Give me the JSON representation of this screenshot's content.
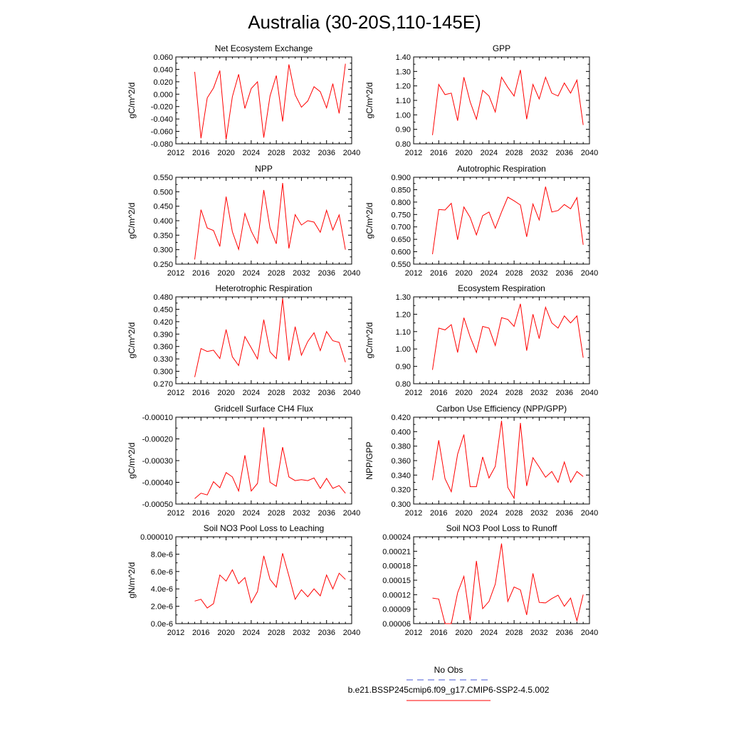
{
  "figure": {
    "title": "Australia (30-20S,110-145E)",
    "legend": {
      "obs_label": "No Obs",
      "obs_color": "#4a5bd6",
      "model_label": "b.e21.BSSP245cmip6.f09_g17.CMIP6-SSP2-4.5.002",
      "model_color": "#ff0000"
    }
  },
  "chart_data": [
    {
      "type": "line",
      "title": "Net Ecosystem Exchange",
      "ylabel": "gC/m^2/d",
      "xlim": [
        2012,
        2040
      ],
      "xticks": [
        "2012",
        "2016",
        "2020",
        "2024",
        "2028",
        "2032",
        "2036",
        "2040"
      ],
      "ylim": [
        -0.08,
        0.06
      ],
      "yticks": [
        "-0.080",
        "-0.060",
        "-0.040",
        "-0.020",
        "0.000",
        "0.020",
        "0.040",
        "0.060"
      ],
      "series": [
        {
          "color": "#ff0000",
          "x": [
            2015,
            2016,
            2017,
            2018,
            2019,
            2020,
            2021,
            2022,
            2023,
            2024,
            2025,
            2026,
            2027,
            2028,
            2029,
            2030,
            2031,
            2032,
            2033,
            2034,
            2035,
            2036,
            2037,
            2038,
            2039
          ],
          "values": [
            0.036,
            -0.071,
            -0.006,
            0.01,
            0.038,
            -0.073,
            -0.004,
            0.032,
            -0.023,
            0.009,
            0.02,
            -0.07,
            -0.003,
            0.03,
            -0.044,
            0.048,
            -0.001,
            -0.021,
            -0.011,
            0.012,
            0.004,
            -0.022,
            0.017,
            -0.031,
            0.049
          ]
        }
      ]
    },
    {
      "type": "line",
      "title": "GPP",
      "ylabel": "gC/m^2/d",
      "xlim": [
        2012,
        2040
      ],
      "xticks": [
        "2012",
        "2016",
        "2020",
        "2024",
        "2028",
        "2032",
        "2036",
        "2040"
      ],
      "ylim": [
        0.8,
        1.4
      ],
      "yticks": [
        "0.80",
        "0.90",
        "1.00",
        "1.10",
        "1.20",
        "1.30",
        "1.40"
      ],
      "series": [
        {
          "color": "#ff0000",
          "x": [
            2015,
            2016,
            2017,
            2018,
            2019,
            2020,
            2021,
            2022,
            2023,
            2024,
            2025,
            2026,
            2027,
            2028,
            2029,
            2030,
            2031,
            2032,
            2033,
            2034,
            2035,
            2036,
            2037,
            2038,
            2039
          ],
          "values": [
            0.86,
            1.21,
            1.14,
            1.15,
            0.96,
            1.26,
            1.09,
            0.97,
            1.17,
            1.13,
            1.02,
            1.26,
            1.19,
            1.13,
            1.31,
            0.97,
            1.21,
            1.11,
            1.26,
            1.15,
            1.13,
            1.22,
            1.15,
            1.24,
            0.93
          ]
        }
      ]
    },
    {
      "type": "line",
      "title": "NPP",
      "ylabel": "gC/m^2/d",
      "xlim": [
        2012,
        2040
      ],
      "xticks": [
        "2012",
        "2016",
        "2020",
        "2024",
        "2028",
        "2032",
        "2036",
        "2040"
      ],
      "ylim": [
        0.25,
        0.55
      ],
      "yticks": [
        "0.250",
        "0.300",
        "0.350",
        "0.400",
        "0.450",
        "0.500",
        "0.550"
      ],
      "series": [
        {
          "color": "#ff0000",
          "x": [
            2015,
            2016,
            2017,
            2018,
            2019,
            2020,
            2021,
            2022,
            2023,
            2024,
            2025,
            2026,
            2027,
            2028,
            2029,
            2030,
            2031,
            2032,
            2033,
            2034,
            2035,
            2036,
            2037,
            2038,
            2039
          ],
          "values": [
            0.266,
            0.438,
            0.375,
            0.366,
            0.311,
            0.483,
            0.362,
            0.301,
            0.425,
            0.364,
            0.322,
            0.506,
            0.375,
            0.32,
            0.53,
            0.304,
            0.421,
            0.385,
            0.4,
            0.395,
            0.36,
            0.436,
            0.368,
            0.42,
            0.3
          ]
        }
      ]
    },
    {
      "type": "line",
      "title": "Autotrophic Respiration",
      "ylabel": "gC/m^2/d",
      "xlim": [
        2012,
        2040
      ],
      "xticks": [
        "2012",
        "2016",
        "2020",
        "2024",
        "2028",
        "2032",
        "2036",
        "2040"
      ],
      "ylim": [
        0.55,
        0.9
      ],
      "yticks": [
        "0.550",
        "0.600",
        "0.650",
        "0.700",
        "0.750",
        "0.800",
        "0.850",
        "0.900"
      ],
      "series": [
        {
          "color": "#ff0000",
          "x": [
            2015,
            2016,
            2017,
            2018,
            2019,
            2020,
            2021,
            2022,
            2023,
            2024,
            2025,
            2026,
            2027,
            2028,
            2029,
            2030,
            2031,
            2032,
            2033,
            2034,
            2035,
            2036,
            2037,
            2038,
            2039
          ],
          "values": [
            0.59,
            0.77,
            0.768,
            0.795,
            0.648,
            0.78,
            0.738,
            0.668,
            0.745,
            0.76,
            0.695,
            0.76,
            0.82,
            0.805,
            0.788,
            0.66,
            0.792,
            0.728,
            0.862,
            0.76,
            0.766,
            0.79,
            0.773,
            0.818,
            0.628
          ]
        }
      ]
    },
    {
      "type": "line",
      "title": "Heterotrophic Respiration",
      "ylabel": "gC/m^2/d",
      "xlim": [
        2012,
        2040
      ],
      "xticks": [
        "2012",
        "2016",
        "2020",
        "2024",
        "2028",
        "2032",
        "2036",
        "2040"
      ],
      "ylim": [
        0.27,
        0.48
      ],
      "yticks": [
        "0.270",
        "0.300",
        "0.330",
        "0.360",
        "0.390",
        "0.420",
        "0.450",
        "0.480"
      ],
      "series": [
        {
          "color": "#ff0000",
          "x": [
            2015,
            2016,
            2017,
            2018,
            2019,
            2020,
            2021,
            2022,
            2023,
            2024,
            2025,
            2026,
            2027,
            2028,
            2029,
            2030,
            2031,
            2032,
            2033,
            2034,
            2035,
            2036,
            2037,
            2038,
            2039
          ],
          "values": [
            0.286,
            0.355,
            0.348,
            0.351,
            0.331,
            0.401,
            0.335,
            0.314,
            0.384,
            0.357,
            0.33,
            0.425,
            0.347,
            0.331,
            0.476,
            0.326,
            0.408,
            0.339,
            0.372,
            0.393,
            0.35,
            0.396,
            0.374,
            0.37,
            0.322
          ]
        }
      ]
    },
    {
      "type": "line",
      "title": "Ecosystem Respiration",
      "ylabel": "gC/m^2/d",
      "xlim": [
        2012,
        2040
      ],
      "xticks": [
        "2012",
        "2016",
        "2020",
        "2024",
        "2028",
        "2032",
        "2036",
        "2040"
      ],
      "ylim": [
        0.8,
        1.3
      ],
      "yticks": [
        "0.80",
        "0.90",
        "1.00",
        "1.10",
        "1.20",
        "1.30"
      ],
      "series": [
        {
          "color": "#ff0000",
          "x": [
            2015,
            2016,
            2017,
            2018,
            2019,
            2020,
            2021,
            2022,
            2023,
            2024,
            2025,
            2026,
            2027,
            2028,
            2029,
            2030,
            2031,
            2032,
            2033,
            2034,
            2035,
            2036,
            2037,
            2038,
            2039
          ],
          "values": [
            0.88,
            1.12,
            1.11,
            1.14,
            0.98,
            1.18,
            1.07,
            0.98,
            1.13,
            1.12,
            1.02,
            1.18,
            1.17,
            1.13,
            1.26,
            0.99,
            1.2,
            1.06,
            1.24,
            1.15,
            1.12,
            1.19,
            1.15,
            1.19,
            0.95
          ]
        }
      ]
    },
    {
      "type": "line",
      "title": "Gridcell Surface CH4 Flux",
      "ylabel": "gC/m^2/d",
      "xlim": [
        2012,
        2040
      ],
      "xticks": [
        "2012",
        "2016",
        "2020",
        "2024",
        "2028",
        "2032",
        "2036",
        "2040"
      ],
      "ylim": [
        -0.0005,
        -0.0001
      ],
      "yticks": [
        "-0.00050",
        "-0.00040",
        "-0.00030",
        "-0.00020",
        "-0.00010"
      ],
      "series": [
        {
          "color": "#ff0000",
          "x": [
            2015,
            2016,
            2017,
            2018,
            2019,
            2020,
            2021,
            2022,
            2023,
            2024,
            2025,
            2026,
            2027,
            2028,
            2029,
            2030,
            2031,
            2032,
            2033,
            2034,
            2035,
            2036,
            2037,
            2038,
            2039
          ],
          "values": [
            -0.000475,
            -0.00045,
            -0.000458,
            -0.000397,
            -0.000425,
            -0.000355,
            -0.000375,
            -0.00044,
            -0.000275,
            -0.00044,
            -0.000405,
            -0.000147,
            -0.0004,
            -0.000418,
            -0.000238,
            -0.000375,
            -0.000392,
            -0.000388,
            -0.000392,
            -0.00038,
            -0.000428,
            -0.000382,
            -0.000428,
            -0.000415,
            -0.00045
          ]
        }
      ]
    },
    {
      "type": "line",
      "title": "Carbon Use Efficiency (NPP/GPP)",
      "ylabel": "NPP/GPP",
      "xlim": [
        2012,
        2040
      ],
      "xticks": [
        "2012",
        "2016",
        "2020",
        "2024",
        "2028",
        "2032",
        "2036",
        "2040"
      ],
      "ylim": [
        0.3,
        0.42
      ],
      "yticks": [
        "0.300",
        "0.320",
        "0.340",
        "0.360",
        "0.380",
        "0.400",
        "0.420"
      ],
      "series": [
        {
          "color": "#ff0000",
          "x": [
            2015,
            2016,
            2017,
            2018,
            2019,
            2020,
            2021,
            2022,
            2023,
            2024,
            2025,
            2026,
            2027,
            2028,
            2029,
            2030,
            2031,
            2032,
            2033,
            2034,
            2035,
            2036,
            2037,
            2038,
            2039
          ],
          "values": [
            0.333,
            0.388,
            0.335,
            0.317,
            0.369,
            0.396,
            0.324,
            0.324,
            0.365,
            0.336,
            0.352,
            0.415,
            0.323,
            0.308,
            0.412,
            0.325,
            0.364,
            0.351,
            0.337,
            0.345,
            0.33,
            0.358,
            0.33,
            0.345,
            0.338
          ]
        }
      ]
    },
    {
      "type": "line",
      "title": "Soil NO3 Pool Loss to Leaching",
      "ylabel": "gN/m^2/d",
      "xlim": [
        2012,
        2040
      ],
      "xticks": [
        "2012",
        "2016",
        "2020",
        "2024",
        "2028",
        "2032",
        "2036",
        "2040"
      ],
      "ylim": [
        0,
        1e-05
      ],
      "yticks": [
        "0.0e-6",
        "2.0e-6",
        "4.0e-6",
        "6.0e-6",
        "8.0e-6",
        "0.000010"
      ],
      "series": [
        {
          "color": "#ff0000",
          "x": [
            2015,
            2016,
            2017,
            2018,
            2019,
            2020,
            2021,
            2022,
            2023,
            2024,
            2025,
            2026,
            2027,
            2028,
            2029,
            2030,
            2031,
            2032,
            2033,
            2034,
            2035,
            2036,
            2037,
            2038,
            2039
          ],
          "values": [
            2.6e-06,
            2.8e-06,
            1.8e-06,
            2.3e-06,
            5.6e-06,
            4.9e-06,
            6.2e-06,
            4.6e-06,
            5.3e-06,
            2.4e-06,
            3.7e-06,
            7.8e-06,
            5.1e-06,
            4.2e-06,
            8.1e-06,
            5.5e-06,
            2.8e-06,
            3.9e-06,
            3.1e-06,
            4e-06,
            3.2e-06,
            5.6e-06,
            4e-06,
            5.8e-06,
            5.1e-06
          ]
        }
      ]
    },
    {
      "type": "line",
      "title": "Soil NO3 Pool Loss to Runoff",
      "ylabel": "",
      "xlim": [
        2012,
        2040
      ],
      "xticks": [
        "2012",
        "2016",
        "2020",
        "2024",
        "2028",
        "2032",
        "2036",
        "2040"
      ],
      "ylim": [
        6e-05,
        0.00024
      ],
      "yticks": [
        "0.00006",
        "0.00009",
        "0.00012",
        "0.00015",
        "0.00018",
        "0.00021",
        "0.00024"
      ],
      "series": [
        {
          "color": "#ff0000",
          "x": [
            2015,
            2016,
            2017,
            2018,
            2019,
            2020,
            2021,
            2022,
            2023,
            2024,
            2025,
            2026,
            2027,
            2028,
            2029,
            2030,
            2031,
            2032,
            2033,
            2034,
            2035,
            2036,
            2037,
            2038,
            2039
          ],
          "values": [
            0.000113,
            0.000111,
            6e-05,
            6e-05,
            0.000124,
            0.000158,
            6.6e-05,
            0.00019,
            9.1e-05,
            0.000106,
            0.000142,
            0.000226,
            0.000106,
            0.000136,
            0.00013,
            7.8e-05,
            0.000164,
            0.000104,
            0.000103,
            0.000112,
            0.000119,
            9.6e-05,
            0.000113,
            6.6e-05,
            0.00012
          ]
        }
      ]
    }
  ]
}
